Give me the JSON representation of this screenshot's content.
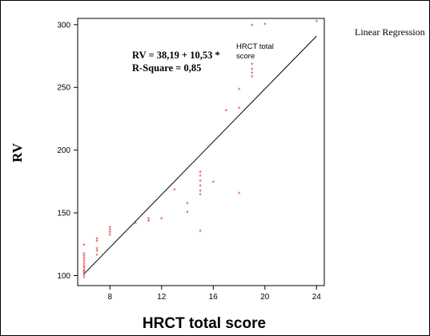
{
  "chart_data": {
    "type": "scatter",
    "xlabel": "HRCT total score",
    "ylabel": "RV",
    "xlim": [
      5.5,
      24.6
    ],
    "ylim": [
      92,
      305
    ],
    "x_ticks": [
      8,
      12,
      16,
      20,
      24
    ],
    "y_ticks": [
      100,
      150,
      200,
      250,
      300
    ],
    "grid": false,
    "legend_text": "Linear Regression",
    "equation_lines": [
      "RV = 38,19 + 10,53 *",
      "R-Square = 0,85"
    ],
    "equation_annotation_lines": [
      "HRCT total",
      "score"
    ],
    "marker_glyph": "*",
    "colors": {
      "points": "#e23a3a",
      "line": "#000000",
      "frame": "#000000"
    },
    "regression_line": {
      "intercept": 38.19,
      "slope": 10.53,
      "x_range": [
        6,
        24
      ]
    },
    "series": [
      {
        "points": [
          [
            6,
            98
          ],
          [
            6,
            100
          ],
          [
            6,
            101
          ],
          [
            6,
            102
          ],
          [
            6,
            103
          ],
          [
            6,
            104
          ],
          [
            6,
            106
          ],
          [
            6,
            107
          ],
          [
            6,
            109
          ],
          [
            6,
            111
          ],
          [
            6,
            113
          ],
          [
            6,
            115
          ],
          [
            6,
            117
          ],
          [
            6,
            124
          ],
          [
            7,
            116
          ],
          [
            7,
            119
          ],
          [
            7,
            121
          ],
          [
            7,
            127
          ],
          [
            7,
            129
          ],
          [
            8,
            132
          ],
          [
            8,
            134
          ],
          [
            8,
            136
          ],
          [
            8,
            138
          ],
          [
            10,
            141
          ],
          [
            11,
            143
          ],
          [
            11,
            145
          ],
          [
            12,
            145
          ],
          [
            13,
            168
          ],
          [
            14,
            150
          ],
          [
            14,
            157
          ],
          [
            15,
            135
          ],
          [
            15,
            164
          ],
          [
            15,
            167
          ],
          [
            15,
            171
          ],
          [
            15,
            175
          ],
          [
            15,
            179
          ],
          [
            15,
            182
          ],
          [
            16,
            174
          ],
          [
            17,
            231
          ],
          [
            18,
            165
          ],
          [
            18,
            233
          ],
          [
            18,
            248
          ],
          [
            19,
            258
          ],
          [
            19,
            261
          ],
          [
            19,
            264
          ],
          [
            19,
            268
          ],
          [
            19,
            299
          ],
          [
            20,
            300
          ],
          [
            24,
            302
          ]
        ]
      }
    ]
  }
}
